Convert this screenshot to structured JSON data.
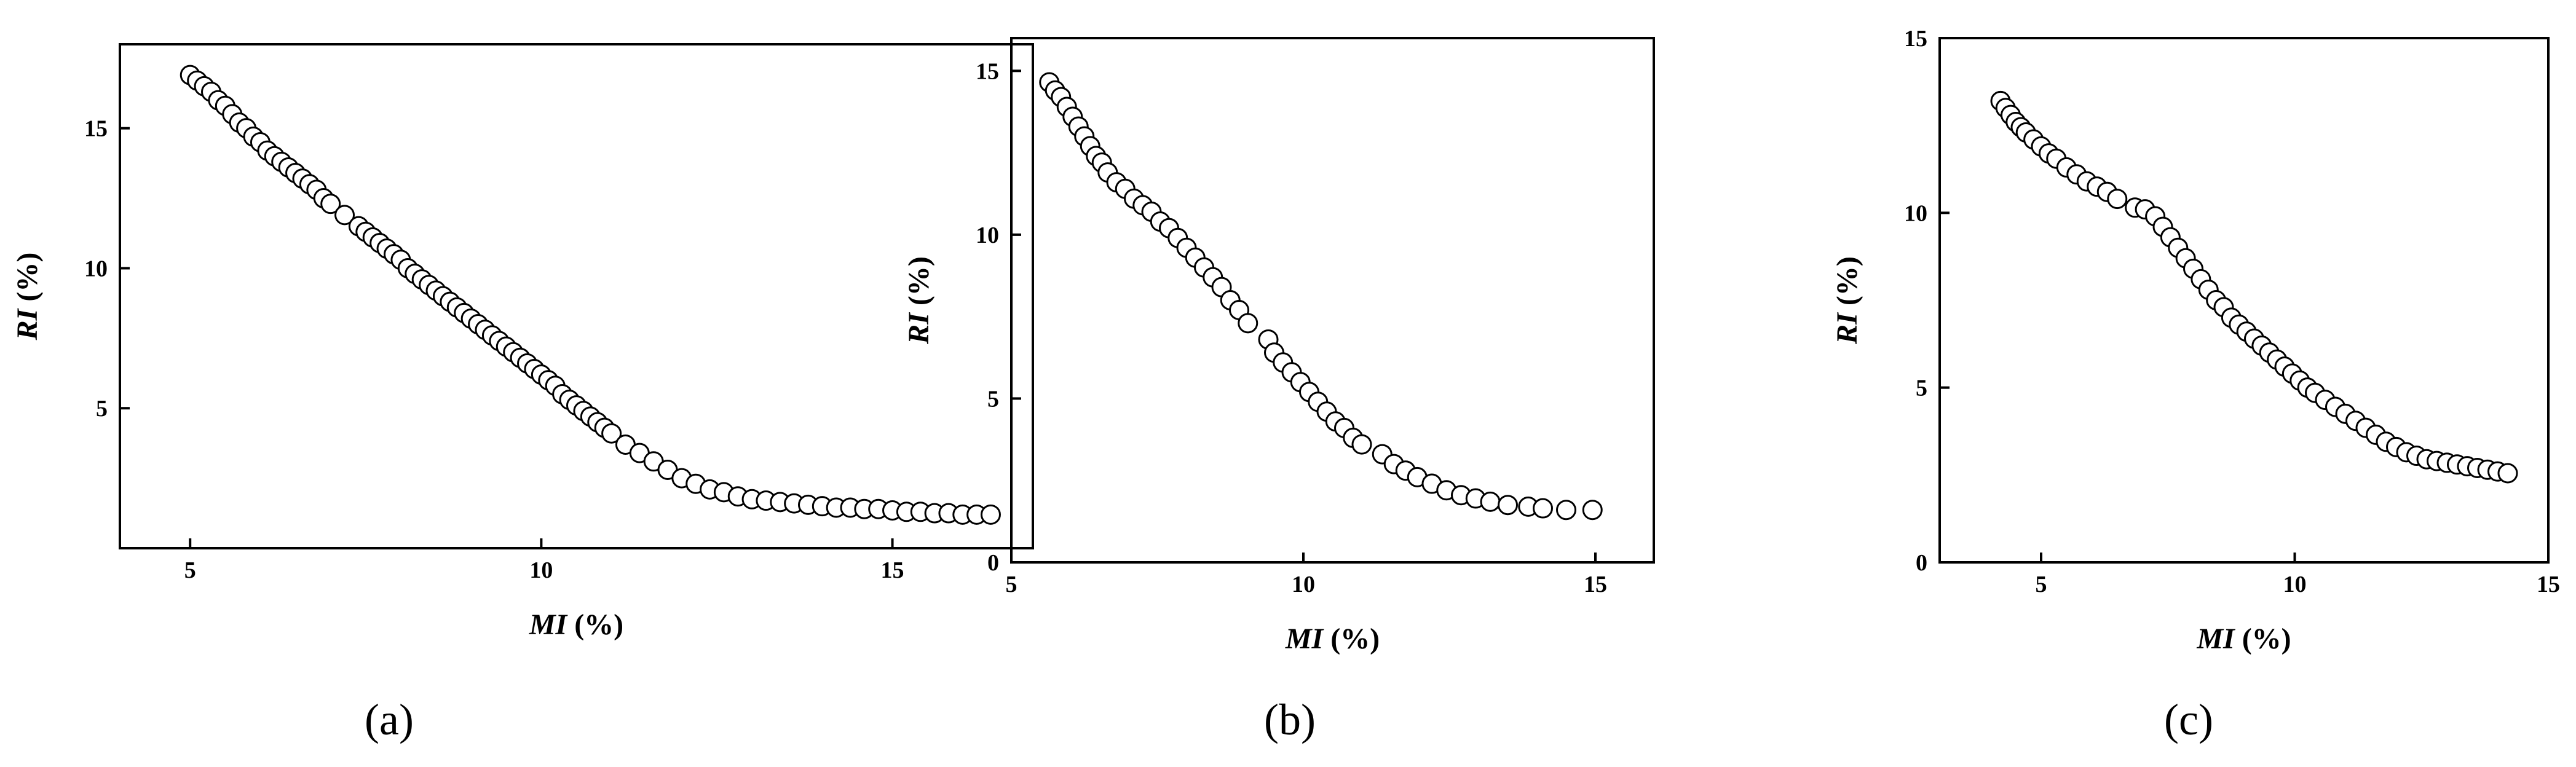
{
  "chart_data": [
    {
      "type": "scatter",
      "panel_label": "(a)",
      "xlabel": {
        "var": "MI",
        "unit": "(%)"
      },
      "ylabel": {
        "var": "RI",
        "unit": "(%)"
      },
      "xlim": [
        4,
        17
      ],
      "ylim": [
        0,
        18
      ],
      "xticks": [
        5,
        10,
        15
      ],
      "yticks": [
        5,
        10,
        15
      ],
      "grid": false,
      "series": [
        {
          "points": [
            [
              5.0,
              16.9
            ],
            [
              5.1,
              16.7
            ],
            [
              5.2,
              16.5
            ],
            [
              5.3,
              16.3
            ],
            [
              5.4,
              16.0
            ],
            [
              5.5,
              15.8
            ],
            [
              5.6,
              15.5
            ],
            [
              5.7,
              15.2
            ],
            [
              5.8,
              15.0
            ],
            [
              5.9,
              14.7
            ],
            [
              6.0,
              14.5
            ],
            [
              6.1,
              14.2
            ],
            [
              6.2,
              14.0
            ],
            [
              6.3,
              13.8
            ],
            [
              6.4,
              13.6
            ],
            [
              6.5,
              13.4
            ],
            [
              6.6,
              13.2
            ],
            [
              6.7,
              13.0
            ],
            [
              6.8,
              12.8
            ],
            [
              6.9,
              12.5
            ],
            [
              7.0,
              12.3
            ],
            [
              7.2,
              11.9
            ],
            [
              7.4,
              11.5
            ],
            [
              7.5,
              11.3
            ],
            [
              7.6,
              11.1
            ],
            [
              7.7,
              10.9
            ],
            [
              7.8,
              10.7
            ],
            [
              7.9,
              10.5
            ],
            [
              8.0,
              10.3
            ],
            [
              8.1,
              10.0
            ],
            [
              8.2,
              9.8
            ],
            [
              8.3,
              9.6
            ],
            [
              8.4,
              9.4
            ],
            [
              8.5,
              9.2
            ],
            [
              8.6,
              9.0
            ],
            [
              8.7,
              8.8
            ],
            [
              8.8,
              8.6
            ],
            [
              8.9,
              8.4
            ],
            [
              9.0,
              8.2
            ],
            [
              9.1,
              8.0
            ],
            [
              9.2,
              7.8
            ],
            [
              9.3,
              7.6
            ],
            [
              9.4,
              7.4
            ],
            [
              9.5,
              7.2
            ],
            [
              9.6,
              7.0
            ],
            [
              9.7,
              6.8
            ],
            [
              9.8,
              6.6
            ],
            [
              9.9,
              6.4
            ],
            [
              10.0,
              6.2
            ],
            [
              10.1,
              6.0
            ],
            [
              10.2,
              5.8
            ],
            [
              10.3,
              5.5
            ],
            [
              10.4,
              5.3
            ],
            [
              10.5,
              5.1
            ],
            [
              10.6,
              4.9
            ],
            [
              10.7,
              4.7
            ],
            [
              10.8,
              4.5
            ],
            [
              10.9,
              4.3
            ],
            [
              11.0,
              4.1
            ],
            [
              11.2,
              3.7
            ],
            [
              11.4,
              3.4
            ],
            [
              11.6,
              3.1
            ],
            [
              11.8,
              2.8
            ],
            [
              12.0,
              2.5
            ],
            [
              12.2,
              2.3
            ],
            [
              12.4,
              2.1
            ],
            [
              12.6,
              2.0
            ],
            [
              12.8,
              1.85
            ],
            [
              13.0,
              1.75
            ],
            [
              13.2,
              1.7
            ],
            [
              13.4,
              1.65
            ],
            [
              13.6,
              1.6
            ],
            [
              13.8,
              1.55
            ],
            [
              14.0,
              1.5
            ],
            [
              14.2,
              1.45
            ],
            [
              14.4,
              1.45
            ],
            [
              14.6,
              1.4
            ],
            [
              14.8,
              1.4
            ],
            [
              15.0,
              1.35
            ],
            [
              15.2,
              1.3
            ],
            [
              15.4,
              1.3
            ],
            [
              15.6,
              1.25
            ],
            [
              15.8,
              1.25
            ],
            [
              16.0,
              1.2
            ],
            [
              16.2,
              1.2
            ],
            [
              16.4,
              1.2
            ]
          ]
        }
      ]
    },
    {
      "type": "scatter",
      "panel_label": "(b)",
      "xlabel": {
        "var": "MI",
        "unit": "(%)"
      },
      "ylabel": {
        "var": "RI",
        "unit": "(%)"
      },
      "xlim": [
        5,
        16
      ],
      "ylim": [
        0,
        16
      ],
      "xticks": [
        5,
        10,
        15
      ],
      "yticks": [
        0,
        5,
        10,
        15
      ],
      "grid": false,
      "series": [
        {
          "points": [
            [
              5.65,
              14.65
            ],
            [
              5.75,
              14.4
            ],
            [
              5.85,
              14.2
            ],
            [
              5.95,
              13.9
            ],
            [
              6.05,
              13.6
            ],
            [
              6.15,
              13.3
            ],
            [
              6.25,
              13.0
            ],
            [
              6.35,
              12.7
            ],
            [
              6.45,
              12.4
            ],
            [
              6.55,
              12.2
            ],
            [
              6.65,
              11.9
            ],
            [
              6.8,
              11.6
            ],
            [
              6.95,
              11.4
            ],
            [
              7.1,
              11.1
            ],
            [
              7.25,
              10.9
            ],
            [
              7.4,
              10.7
            ],
            [
              7.55,
              10.4
            ],
            [
              7.7,
              10.2
            ],
            [
              7.85,
              9.9
            ],
            [
              8.0,
              9.6
            ],
            [
              8.15,
              9.3
            ],
            [
              8.3,
              9.0
            ],
            [
              8.45,
              8.7
            ],
            [
              8.6,
              8.4
            ],
            [
              8.75,
              8.0
            ],
            [
              8.9,
              7.7
            ],
            [
              9.05,
              7.3
            ],
            [
              9.4,
              6.8
            ],
            [
              9.5,
              6.4
            ],
            [
              9.65,
              6.1
            ],
            [
              9.8,
              5.8
            ],
            [
              9.95,
              5.5
            ],
            [
              10.1,
              5.2
            ],
            [
              10.25,
              4.9
            ],
            [
              10.4,
              4.6
            ],
            [
              10.55,
              4.3
            ],
            [
              10.7,
              4.1
            ],
            [
              10.85,
              3.8
            ],
            [
              11.0,
              3.6
            ],
            [
              11.35,
              3.3
            ],
            [
              11.55,
              3.0
            ],
            [
              11.75,
              2.8
            ],
            [
              11.95,
              2.6
            ],
            [
              12.2,
              2.4
            ],
            [
              12.45,
              2.2
            ],
            [
              12.7,
              2.05
            ],
            [
              12.95,
              1.95
            ],
            [
              13.2,
              1.85
            ],
            [
              13.5,
              1.75
            ],
            [
              13.85,
              1.7
            ],
            [
              14.1,
              1.65
            ],
            [
              14.5,
              1.6
            ],
            [
              14.95,
              1.6
            ]
          ]
        }
      ]
    },
    {
      "type": "scatter",
      "panel_label": "(c)",
      "xlabel": {
        "var": "MI",
        "unit": "(%)"
      },
      "ylabel": {
        "var": "RI",
        "unit": "(%)"
      },
      "xlim": [
        3,
        15
      ],
      "ylim": [
        0,
        15
      ],
      "xticks": [
        5,
        10,
        15
      ],
      "yticks": [
        0,
        5,
        10,
        15
      ],
      "grid": false,
      "series": [
        {
          "points": [
            [
              4.2,
              13.2
            ],
            [
              4.3,
              13.0
            ],
            [
              4.4,
              12.8
            ],
            [
              4.5,
              12.6
            ],
            [
              4.6,
              12.45
            ],
            [
              4.7,
              12.3
            ],
            [
              4.85,
              12.1
            ],
            [
              5.0,
              11.9
            ],
            [
              5.15,
              11.7
            ],
            [
              5.3,
              11.55
            ],
            [
              5.5,
              11.3
            ],
            [
              5.7,
              11.1
            ],
            [
              5.9,
              10.9
            ],
            [
              6.1,
              10.75
            ],
            [
              6.3,
              10.6
            ],
            [
              6.5,
              10.4
            ],
            [
              6.85,
              10.15
            ],
            [
              7.05,
              10.1
            ],
            [
              7.25,
              9.9
            ],
            [
              7.4,
              9.6
            ],
            [
              7.55,
              9.3
            ],
            [
              7.7,
              9.0
            ],
            [
              7.85,
              8.7
            ],
            [
              8.0,
              8.4
            ],
            [
              8.15,
              8.1
            ],
            [
              8.3,
              7.8
            ],
            [
              8.45,
              7.5
            ],
            [
              8.6,
              7.3
            ],
            [
              8.75,
              7.0
            ],
            [
              8.9,
              6.8
            ],
            [
              9.05,
              6.6
            ],
            [
              9.2,
              6.4
            ],
            [
              9.35,
              6.2
            ],
            [
              9.5,
              6.0
            ],
            [
              9.65,
              5.8
            ],
            [
              9.8,
              5.6
            ],
            [
              9.95,
              5.4
            ],
            [
              10.1,
              5.2
            ],
            [
              10.25,
              5.0
            ],
            [
              10.4,
              4.85
            ],
            [
              10.6,
              4.65
            ],
            [
              10.8,
              4.45
            ],
            [
              11.0,
              4.25
            ],
            [
              11.2,
              4.05
            ],
            [
              11.4,
              3.85
            ],
            [
              11.6,
              3.65
            ],
            [
              11.8,
              3.45
            ],
            [
              12.0,
              3.3
            ],
            [
              12.2,
              3.15
            ],
            [
              12.4,
              3.05
            ],
            [
              12.6,
              2.95
            ],
            [
              12.8,
              2.9
            ],
            [
              13.0,
              2.85
            ],
            [
              13.2,
              2.8
            ],
            [
              13.4,
              2.75
            ],
            [
              13.6,
              2.7
            ],
            [
              13.8,
              2.65
            ],
            [
              14.0,
              2.6
            ],
            [
              14.2,
              2.55
            ]
          ]
        }
      ]
    }
  ]
}
